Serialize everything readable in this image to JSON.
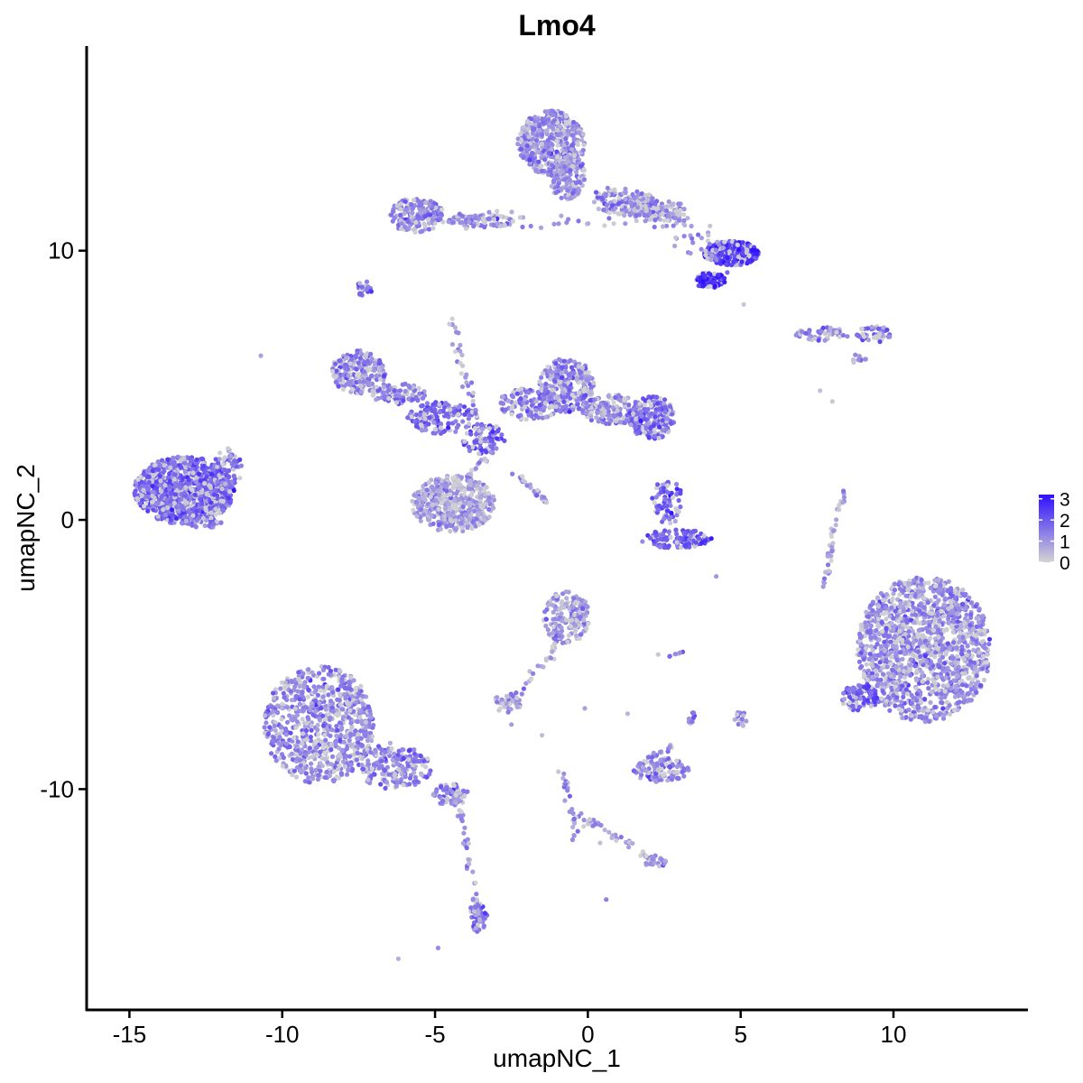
{
  "chart_data": {
    "type": "scatter",
    "title": "Lmo4",
    "xlabel": "umapNC_1",
    "ylabel": "umapNC_2",
    "xlim": [
      -16.4,
      14.4
    ],
    "ylim": [
      -18.2,
      17.6
    ],
    "x_ticks": [
      -15,
      -10,
      -5,
      0,
      5,
      10
    ],
    "x_tick_labels": [
      "-15",
      "-10",
      "-5",
      "0",
      "5",
      "10"
    ],
    "y_ticks": [
      -10,
      0,
      10
    ],
    "y_tick_labels": [
      "-10",
      "0",
      "10"
    ],
    "grid": false,
    "legend_position": "right",
    "color_scale": {
      "low_color": "#d3d3d3",
      "high_color": "#2f10ff",
      "min": 0,
      "max": 3.2,
      "ticks": [
        0,
        1,
        2,
        3
      ],
      "tick_labels": [
        "0",
        "1",
        "2",
        "3"
      ]
    },
    "clusters": [
      {
        "cx": -13.2,
        "cy": 1.1,
        "rx": 1.65,
        "ry": 1.25,
        "n": 900,
        "expr": 1.8
      },
      {
        "cx": -11.8,
        "cy": 1.9,
        "rx": 0.5,
        "ry": 0.7,
        "n": 50,
        "expr": 1.6
      },
      {
        "cx": -12.6,
        "cy": -0.1,
        "rx": 0.7,
        "ry": 0.2,
        "n": 40,
        "expr": 1.6
      },
      {
        "cx": -1.2,
        "cy": 14.0,
        "rx": 1.1,
        "ry": 1.2,
        "n": 450,
        "expr": 1.2
      },
      {
        "cx": -0.7,
        "cy": 12.8,
        "rx": 0.6,
        "ry": 0.9,
        "n": 180,
        "expr": 1.1
      },
      {
        "cx": 1.2,
        "cy": 11.8,
        "rx": 1.0,
        "ry": 0.5,
        "n": 130,
        "expr": 1.2
      },
      {
        "cx": 2.4,
        "cy": 11.5,
        "rx": 0.8,
        "ry": 0.4,
        "n": 90,
        "expr": 1.1
      },
      {
        "cx": 4.7,
        "cy": 9.9,
        "rx": 0.9,
        "ry": 0.45,
        "n": 260,
        "expr": 2.6
      },
      {
        "cx": 4.0,
        "cy": 8.9,
        "rx": 0.5,
        "ry": 0.3,
        "n": 80,
        "expr": 2.8
      },
      {
        "cx": -5.6,
        "cy": 11.3,
        "rx": 0.9,
        "ry": 0.65,
        "n": 170,
        "expr": 1.3
      },
      {
        "cx": -3.5,
        "cy": 11.1,
        "rx": 1.1,
        "ry": 0.25,
        "n": 80,
        "expr": 1.1
      },
      {
        "cx": -7.3,
        "cy": 8.6,
        "rx": 0.25,
        "ry": 0.3,
        "n": 22,
        "expr": 2.0
      },
      {
        "cx": 7.7,
        "cy": 6.9,
        "rx": 0.9,
        "ry": 0.25,
        "n": 45,
        "expr": 1.3
      },
      {
        "cx": 9.4,
        "cy": 6.9,
        "rx": 0.6,
        "ry": 0.3,
        "n": 45,
        "expr": 1.5
      },
      {
        "cx": 8.8,
        "cy": 6.0,
        "rx": 0.3,
        "ry": 0.2,
        "n": 12,
        "expr": 1.0
      },
      {
        "cx": -7.5,
        "cy": 5.5,
        "rx": 0.9,
        "ry": 0.8,
        "n": 220,
        "expr": 1.3
      },
      {
        "cx": -6.2,
        "cy": 4.7,
        "rx": 0.9,
        "ry": 0.4,
        "n": 90,
        "expr": 1.4
      },
      {
        "cx": -4.8,
        "cy": 3.8,
        "rx": 1.1,
        "ry": 0.6,
        "n": 160,
        "expr": 1.7
      },
      {
        "cx": -3.4,
        "cy": 3.0,
        "rx": 0.7,
        "ry": 0.6,
        "n": 80,
        "expr": 2.0
      },
      {
        "cx": -4.4,
        "cy": 0.6,
        "rx": 1.35,
        "ry": 1.05,
        "n": 450,
        "expr": 0.9
      },
      {
        "cx": -1.9,
        "cy": 4.3,
        "rx": 1.0,
        "ry": 0.6,
        "n": 120,
        "expr": 1.4
      },
      {
        "cx": -0.7,
        "cy": 5.0,
        "rx": 0.9,
        "ry": 1.0,
        "n": 260,
        "expr": 1.4
      },
      {
        "cx": 0.8,
        "cy": 4.1,
        "rx": 1.0,
        "ry": 0.55,
        "n": 150,
        "expr": 1.3
      },
      {
        "cx": 2.1,
        "cy": 3.8,
        "rx": 0.75,
        "ry": 0.8,
        "n": 240,
        "expr": 1.7
      },
      {
        "cx": 2.6,
        "cy": 0.7,
        "rx": 0.5,
        "ry": 0.9,
        "n": 70,
        "expr": 1.8
      },
      {
        "cx": 2.9,
        "cy": -0.7,
        "rx": 1.2,
        "ry": 0.35,
        "n": 120,
        "expr": 1.9
      },
      {
        "cx": -0.7,
        "cy": -3.6,
        "rx": 0.75,
        "ry": 1.0,
        "n": 180,
        "expr": 1.1
      },
      {
        "cx": -2.6,
        "cy": -6.8,
        "rx": 0.5,
        "ry": 0.35,
        "n": 40,
        "expr": 1.1
      },
      {
        "cx": 2.4,
        "cy": -9.3,
        "rx": 0.9,
        "ry": 0.45,
        "n": 110,
        "expr": 1.3
      },
      {
        "cx": 5.0,
        "cy": -7.4,
        "rx": 0.2,
        "ry": 0.3,
        "n": 18,
        "expr": 1.2
      },
      {
        "cx": 11.0,
        "cy": -4.8,
        "rx": 2.2,
        "ry": 2.7,
        "n": 1400,
        "expr": 1.2
      },
      {
        "cx": 8.9,
        "cy": -6.6,
        "rx": 0.6,
        "ry": 0.5,
        "n": 80,
        "expr": 1.8
      },
      {
        "cx": -8.8,
        "cy": -7.6,
        "rx": 1.8,
        "ry": 2.2,
        "n": 750,
        "expr": 1.3
      },
      {
        "cx": -6.3,
        "cy": -9.2,
        "rx": 1.2,
        "ry": 0.8,
        "n": 170,
        "expr": 1.3
      },
      {
        "cx": -4.5,
        "cy": -10.2,
        "rx": 0.6,
        "ry": 0.4,
        "n": 60,
        "expr": 1.4
      },
      {
        "cx": -3.6,
        "cy": -14.7,
        "rx": 0.3,
        "ry": 0.6,
        "n": 50,
        "expr": 1.6
      },
      {
        "cx": 2.2,
        "cy": -12.7,
        "rx": 0.35,
        "ry": 0.25,
        "n": 22,
        "expr": 1.4
      }
    ],
    "streams": [
      {
        "path": [
          [
            -5.8,
            11.1
          ],
          [
            -3.0,
            11.2
          ],
          [
            0.0,
            11.0
          ],
          [
            2.5,
            11.6
          ],
          [
            4.6,
            10.2
          ]
        ],
        "n": 90,
        "spread": 0.3,
        "expr": 1.0
      },
      {
        "path": [
          [
            -0.5,
            12.8
          ],
          [
            1.0,
            11.8
          ],
          [
            3.0,
            10.6
          ],
          [
            4.6,
            9.6
          ]
        ],
        "n": 60,
        "spread": 0.4,
        "expr": 1.4
      },
      {
        "path": [
          [
            -4.5,
            7.5
          ],
          [
            -4.0,
            5.0
          ],
          [
            -3.4,
            3.0
          ]
        ],
        "n": 40,
        "spread": 0.15,
        "expr": 1.2
      },
      {
        "path": [
          [
            -2.4,
            1.8
          ],
          [
            -1.4,
            0.7
          ]
        ],
        "n": 25,
        "spread": 0.1,
        "expr": 1.3
      },
      {
        "path": [
          [
            -3.2,
            2.5
          ],
          [
            -4.0,
            1.5
          ]
        ],
        "n": 20,
        "spread": 0.15,
        "expr": 1.1
      },
      {
        "path": [
          [
            -2.6,
            -6.8
          ],
          [
            -1.2,
            -5.0
          ],
          [
            -0.8,
            -3.6
          ]
        ],
        "n": 30,
        "spread": 0.15,
        "expr": 1.1
      },
      {
        "path": [
          [
            -0.9,
            -9.3
          ],
          [
            -0.4,
            -11.0
          ],
          [
            0.4,
            -11.4
          ],
          [
            1.8,
            -12.4
          ],
          [
            2.2,
            -12.8
          ]
        ],
        "n": 60,
        "spread": 0.15,
        "expr": 1.1
      },
      {
        "path": [
          [
            -0.4,
            -11.0
          ],
          [
            -0.5,
            -12.0
          ]
        ],
        "n": 10,
        "spread": 0.1,
        "expr": 1.0
      },
      {
        "path": [
          [
            -4.3,
            -10.2
          ],
          [
            -4.0,
            -12.0
          ],
          [
            -3.7,
            -13.9
          ],
          [
            -3.6,
            -15.1
          ]
        ],
        "n": 55,
        "spread": 0.15,
        "expr": 1.2
      },
      {
        "path": [
          [
            -7.5,
            -8.5
          ],
          [
            -5.5,
            -9.0
          ]
        ],
        "n": 30,
        "spread": 0.5,
        "expr": 1.3
      },
      {
        "path": [
          [
            8.4,
            1.2
          ],
          [
            8.0,
            -0.5
          ],
          [
            7.9,
            -2.1
          ]
        ],
        "n": 30,
        "spread": 0.1,
        "expr": 0.8
      },
      {
        "path": [
          [
            1.8,
            -9.0
          ],
          [
            2.8,
            -8.4
          ]
        ],
        "n": 20,
        "spread": 0.12,
        "expr": 1.3
      },
      {
        "path": [
          [
            3.3,
            -7.6
          ],
          [
            3.5,
            -7.2
          ]
        ],
        "n": 10,
        "spread": 0.08,
        "expr": 1.2
      },
      {
        "path": [
          [
            2.6,
            -5.1
          ],
          [
            3.1,
            -4.9
          ]
        ],
        "n": 8,
        "spread": 0.05,
        "expr": 1.0
      },
      {
        "path": [
          [
            -11.8,
            2.7
          ],
          [
            -11.5,
            1.8
          ]
        ],
        "n": 12,
        "spread": 0.1,
        "expr": 1.5
      },
      {
        "path": [
          [
            7.9,
            -1.2
          ],
          [
            7.7,
            -2.5
          ]
        ],
        "n": 8,
        "spread": 0.05,
        "expr": 1.0
      }
    ],
    "singles": [
      [
        -10.7,
        6.1,
        0.8
      ],
      [
        -6.2,
        -16.3,
        0.6
      ],
      [
        -4.9,
        -15.9,
        1.2
      ],
      [
        0.6,
        -14.1,
        1.4
      ],
      [
        5.1,
        8.0,
        0.2
      ],
      [
        4.2,
        -2.1,
        1.0
      ],
      [
        2.3,
        -5.0,
        0.2
      ],
      [
        7.6,
        4.8,
        0.3
      ],
      [
        8.0,
        4.4,
        0.2
      ],
      [
        1.3,
        -7.2,
        0.5
      ],
      [
        -0.1,
        -7.0,
        0.8
      ],
      [
        -2.5,
        -7.6,
        0.9
      ],
      [
        3.4,
        -7.5,
        1.5
      ],
      [
        -1.5,
        -8.0,
        0.4
      ],
      [
        0.4,
        -12.0,
        0.3
      ]
    ]
  }
}
